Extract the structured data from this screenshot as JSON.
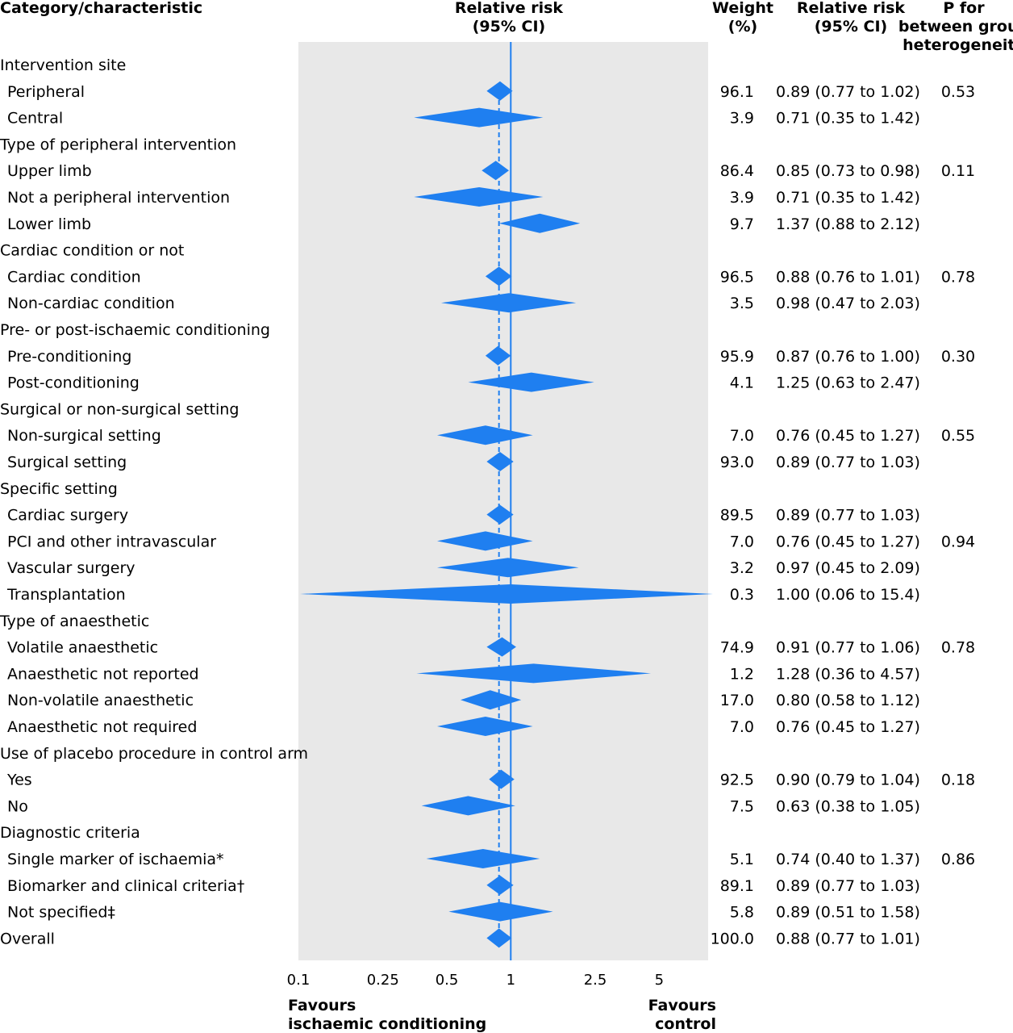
{
  "chart_data": {
    "type": "forest",
    "headers": {
      "category": "Category/characteristic",
      "rr_plot": [
        "Relative risk",
        "(95% CI)"
      ],
      "weight": [
        "Weight",
        "(%)"
      ],
      "rr_text": [
        "Relative risk",
        "(95% CI)"
      ],
      "p": [
        "P for",
        "between group",
        "heterogeneity"
      ]
    },
    "x_scale": "log",
    "xlim": [
      0.1,
      8.5
    ],
    "x_ticks": [
      {
        "value": 0.1,
        "label": "0.1"
      },
      {
        "value": 0.25,
        "label": "0.25"
      },
      {
        "value": 0.5,
        "label": "0.5"
      },
      {
        "value": 1,
        "label": "1"
      },
      {
        "value": 2.5,
        "label": "2.5"
      },
      {
        "value": 5,
        "label": "5"
      }
    ],
    "reference_line": 1,
    "overall_line": 0.88,
    "favours_left": [
      "Favours",
      "ischaemic conditioning"
    ],
    "favours_right": [
      "Favours",
      "control"
    ],
    "colors": {
      "diamond": "#1f7ff0",
      "ref_line": "#1f7ff0",
      "plot_bg": "#e8e8e8",
      "text": "#111111"
    },
    "rows": [
      {
        "kind": "group",
        "label": "Intervention site"
      },
      {
        "kind": "item",
        "label": "Peripheral",
        "weight": "96.1",
        "rr": 0.89,
        "lo": 0.77,
        "hi": 1.02,
        "rr_text": "0.89 (0.77 to 1.02)",
        "p": "0.53"
      },
      {
        "kind": "item",
        "label": "Central",
        "weight": "3.9",
        "rr": 0.71,
        "lo": 0.35,
        "hi": 1.42,
        "rr_text": "0.71 (0.35 to 1.42)",
        "p": ""
      },
      {
        "kind": "group",
        "label": "Type of peripheral intervention"
      },
      {
        "kind": "item",
        "label": "Upper limb",
        "weight": "86.4",
        "rr": 0.85,
        "lo": 0.73,
        "hi": 0.98,
        "rr_text": "0.85 (0.73 to 0.98)",
        "p": "0.11"
      },
      {
        "kind": "item",
        "label": "Not a peripheral intervention",
        "weight": "3.9",
        "rr": 0.71,
        "lo": 0.35,
        "hi": 1.42,
        "rr_text": "0.71 (0.35 to 1.42)",
        "p": ""
      },
      {
        "kind": "item",
        "label": "Lower limb",
        "weight": "9.7",
        "rr": 1.37,
        "lo": 0.88,
        "hi": 2.12,
        "rr_text": "1.37 (0.88 to 2.12)",
        "p": ""
      },
      {
        "kind": "group",
        "label": "Cardiac condition or not"
      },
      {
        "kind": "item",
        "label": "Cardiac condition",
        "weight": "96.5",
        "rr": 0.88,
        "lo": 0.76,
        "hi": 1.01,
        "rr_text": "0.88 (0.76 to 1.01)",
        "p": "0.78"
      },
      {
        "kind": "item",
        "label": "Non-cardiac condition",
        "weight": "3.5",
        "rr": 0.98,
        "lo": 0.47,
        "hi": 2.03,
        "rr_text": "0.98 (0.47 to 2.03)",
        "p": ""
      },
      {
        "kind": "group",
        "label": "Pre- or post-ischaemic conditioning"
      },
      {
        "kind": "item",
        "label": "Pre-conditioning",
        "weight": "95.9",
        "rr": 0.87,
        "lo": 0.76,
        "hi": 1.0,
        "rr_text": "0.87 (0.76 to 1.00)",
        "p": "0.30"
      },
      {
        "kind": "item",
        "label": "Post-conditioning",
        "weight": "4.1",
        "rr": 1.25,
        "lo": 0.63,
        "hi": 2.47,
        "rr_text": "1.25 (0.63 to 2.47)",
        "p": ""
      },
      {
        "kind": "group",
        "label": "Surgical or non-surgical setting"
      },
      {
        "kind": "item",
        "label": "Non-surgical setting",
        "weight": "7.0",
        "rr": 0.76,
        "lo": 0.45,
        "hi": 1.27,
        "rr_text": "0.76 (0.45 to 1.27)",
        "p": "0.55"
      },
      {
        "kind": "item",
        "label": "Surgical setting",
        "weight": "93.0",
        "rr": 0.89,
        "lo": 0.77,
        "hi": 1.03,
        "rr_text": "0.89 (0.77 to 1.03)",
        "p": ""
      },
      {
        "kind": "group",
        "label": "Specific setting"
      },
      {
        "kind": "item",
        "label": "Cardiac surgery",
        "weight": "89.5",
        "rr": 0.89,
        "lo": 0.77,
        "hi": 1.03,
        "rr_text": "0.89 (0.77 to 1.03)",
        "p": ""
      },
      {
        "kind": "item",
        "label": "PCI and other intravascular",
        "weight": "7.0",
        "rr": 0.76,
        "lo": 0.45,
        "hi": 1.27,
        "rr_text": "0.76 (0.45 to 1.27)",
        "p": "0.94"
      },
      {
        "kind": "item",
        "label": "Vascular surgery",
        "weight": "3.2",
        "rr": 0.97,
        "lo": 0.45,
        "hi": 2.09,
        "rr_text": "0.97 (0.45 to 2.09)",
        "p": ""
      },
      {
        "kind": "item",
        "label": "Transplantation",
        "weight": "0.3",
        "rr": 1.0,
        "lo": 0.06,
        "hi": 15.4,
        "rr_text": "1.00 (0.06 to 15.4)",
        "p": ""
      },
      {
        "kind": "group",
        "label": "Type of anaesthetic"
      },
      {
        "kind": "item",
        "label": "Volatile anaesthetic",
        "weight": "74.9",
        "rr": 0.91,
        "lo": 0.77,
        "hi": 1.06,
        "rr_text": "0.91 (0.77 to 1.06)",
        "p": "0.78"
      },
      {
        "kind": "item",
        "label": "Anaesthetic not reported",
        "weight": "1.2",
        "rr": 1.28,
        "lo": 0.36,
        "hi": 4.57,
        "rr_text": "1.28 (0.36 to 4.57)",
        "p": ""
      },
      {
        "kind": "item",
        "label": "Non-volatile anaesthetic",
        "weight": "17.0",
        "rr": 0.8,
        "lo": 0.58,
        "hi": 1.12,
        "rr_text": "0.80 (0.58 to 1.12)",
        "p": ""
      },
      {
        "kind": "item",
        "label": "Anaesthetic not required",
        "weight": "7.0",
        "rr": 0.76,
        "lo": 0.45,
        "hi": 1.27,
        "rr_text": "0.76 (0.45 to 1.27)",
        "p": ""
      },
      {
        "kind": "group",
        "label": "Use of placebo procedure in control arm"
      },
      {
        "kind": "item",
        "label": "Yes",
        "weight": "92.5",
        "rr": 0.9,
        "lo": 0.79,
        "hi": 1.04,
        "rr_text": "0.90 (0.79 to 1.04)",
        "p": "0.18"
      },
      {
        "kind": "item",
        "label": "No",
        "weight": "7.5",
        "rr": 0.63,
        "lo": 0.38,
        "hi": 1.05,
        "rr_text": "0.63 (0.38 to 1.05)",
        "p": ""
      },
      {
        "kind": "group",
        "label": "Diagnostic criteria"
      },
      {
        "kind": "item",
        "label": "Single marker of ischaemia*",
        "weight": "5.1",
        "rr": 0.74,
        "lo": 0.4,
        "hi": 1.37,
        "rr_text": "0.74 (0.40 to 1.37)",
        "p": "0.86"
      },
      {
        "kind": "item",
        "label": "Biomarker and clinical criteria†",
        "weight": "89.1",
        "rr": 0.89,
        "lo": 0.77,
        "hi": 1.03,
        "rr_text": "0.89 (0.77 to 1.03)",
        "p": ""
      },
      {
        "kind": "item",
        "label": "Not specified‡",
        "weight": "5.8",
        "rr": 0.89,
        "lo": 0.51,
        "hi": 1.58,
        "rr_text": "0.89 (0.51 to 1.58)",
        "p": ""
      },
      {
        "kind": "overall",
        "label": "Overall",
        "weight": "100.0",
        "rr": 0.88,
        "lo": 0.77,
        "hi": 1.01,
        "rr_text": "0.88 (0.77 to 1.01)",
        "p": ""
      }
    ]
  }
}
